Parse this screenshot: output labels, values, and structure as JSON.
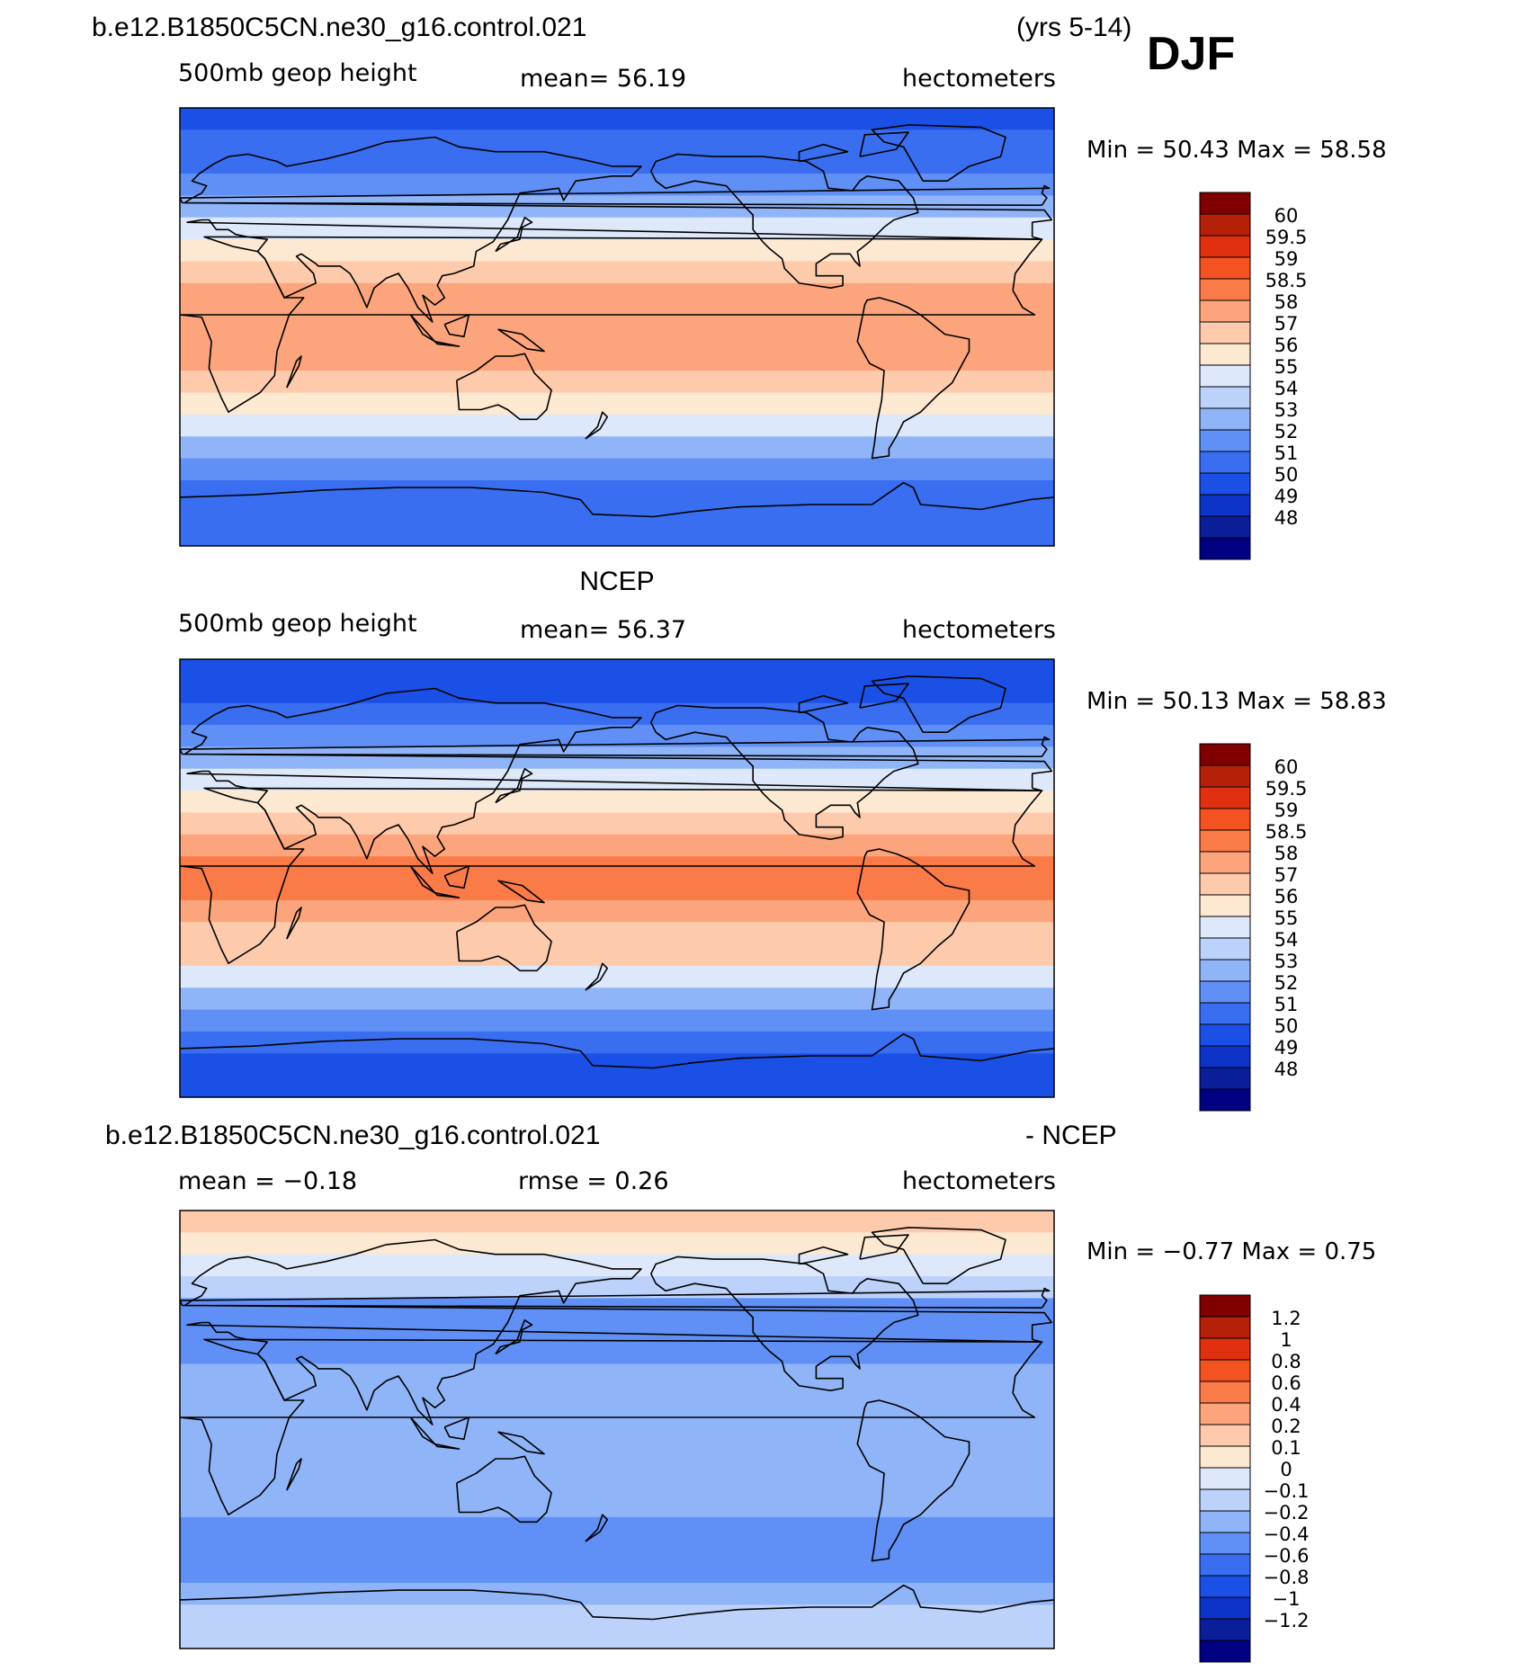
{
  "header": {
    "case_name": "b.e12.B1850C5CN.ne30_g16.control.021",
    "years": "(yrs 5-14)",
    "season": "DJF"
  },
  "panels": [
    {
      "id": "model",
      "title": "",
      "variable": "500mb geop height",
      "stat1": "mean=   56.19",
      "stat2": "",
      "units": "hectometers",
      "min_max": "Min =   50.43  Max =   58.58"
    },
    {
      "id": "obs",
      "title": "NCEP",
      "variable": "500mb geop height",
      "stat1": "mean=   56.37",
      "stat2": "",
      "units": "hectometers",
      "min_max": "Min =   50.13  Max =   58.83"
    },
    {
      "id": "diff",
      "title_left": "b.e12.B1850C5CN.ne30_g16.control.021",
      "title_right": "- NCEP",
      "variable": "",
      "stat1": "mean =   −0.18",
      "stat2": "rmse =    0.26",
      "units": "hectometers",
      "min_max": "Min =   −0.77  Max =    0.75"
    }
  ],
  "chart_data": [
    {
      "type": "heatmap",
      "title": "500mb geop height — b.e12.B1850C5CN.ne30_g16.control.021",
      "units": "hectometers",
      "mean": 56.19,
      "min": 50.43,
      "max": 58.58,
      "contour_levels": [
        48,
        49,
        50,
        51,
        52,
        53,
        54,
        55,
        56,
        57,
        58,
        58.5,
        59,
        59.5,
        60
      ],
      "colorbar_labels": [
        "60",
        "59.5",
        "59",
        "58.5",
        "58",
        "57",
        "56",
        "55",
        "54",
        "53",
        "52",
        "51",
        "50",
        "49",
        "48"
      ],
      "colors": [
        "#000080",
        "#0a1e9a",
        "#0d33c8",
        "#1a50e6",
        "#3a6ef0",
        "#6090f5",
        "#90b4f8",
        "#bcd2fa",
        "#dde9fb",
        "#fde8d2",
        "#fdcbac",
        "#fca47c",
        "#fa7a48",
        "#f45220",
        "#e03010",
        "#b52008",
        "#800000"
      ],
      "zonal_profile": {
        "latitude": [
          90,
          80,
          70,
          60,
          50,
          40,
          30,
          20,
          10,
          0,
          -10,
          -20,
          -30,
          -40,
          -50,
          -60,
          -70,
          -80,
          -90
        ],
        "value": [
          50.6,
          50.9,
          51.4,
          52.4,
          53.8,
          55.3,
          57.0,
          58.0,
          58.3,
          58.4,
          58.3,
          58.0,
          57.2,
          55.6,
          53.6,
          51.9,
          51.1,
          51.0,
          51.1
        ]
      }
    },
    {
      "type": "heatmap",
      "title": "500mb geop height — NCEP",
      "units": "hectometers",
      "mean": 56.37,
      "min": 50.13,
      "max": 58.83,
      "contour_levels": [
        48,
        49,
        50,
        51,
        52,
        53,
        54,
        55,
        56,
        57,
        58,
        58.5,
        59,
        59.5,
        60
      ],
      "colorbar_labels": [
        "60",
        "59.5",
        "59",
        "58.5",
        "58",
        "57",
        "56",
        "55",
        "54",
        "53",
        "52",
        "51",
        "50",
        "49",
        "48"
      ],
      "colors": [
        "#000080",
        "#0a1e9a",
        "#0d33c8",
        "#1a50e6",
        "#3a6ef0",
        "#6090f5",
        "#90b4f8",
        "#bcd2fa",
        "#dde9fb",
        "#fde8d2",
        "#fdcbac",
        "#fca47c",
        "#fa7a48",
        "#f45220",
        "#e03010",
        "#b52008",
        "#800000"
      ],
      "zonal_profile": {
        "latitude": [
          90,
          80,
          70,
          60,
          50,
          40,
          30,
          20,
          10,
          0,
          -10,
          -20,
          -30,
          -40,
          -50,
          -60,
          -70,
          -80,
          -90
        ],
        "value": [
          50.2,
          50.6,
          51.2,
          52.2,
          53.6,
          55.2,
          57.1,
          58.2,
          58.6,
          58.7,
          58.6,
          58.2,
          57.3,
          55.7,
          53.6,
          51.8,
          50.9,
          50.8,
          50.9
        ]
      }
    },
    {
      "type": "heatmap",
      "title": "b.e12.B1850C5CN.ne30_g16.control.021 - NCEP",
      "units": "hectometers",
      "mean": -0.18,
      "rmse": 0.26,
      "min": -0.77,
      "max": 0.75,
      "contour_levels": [
        -1.2,
        -1,
        -0.8,
        -0.6,
        -0.4,
        -0.2,
        -0.1,
        0,
        0.1,
        0.2,
        0.4,
        0.6,
        0.8,
        1,
        1.2
      ],
      "colorbar_labels": [
        "1.2",
        "1",
        "0.8",
        "0.6",
        "0.4",
        "0.2",
        "0.1",
        "0",
        "−0.1",
        "−0.2",
        "−0.4",
        "−0.6",
        "−0.8",
        "−1",
        "−1.2"
      ],
      "colors": [
        "#000080",
        "#0a1e9a",
        "#0d33c8",
        "#1a50e6",
        "#3a6ef0",
        "#6090f5",
        "#90b4f8",
        "#bcd2fa",
        "#dde9fb",
        "#fde8d2",
        "#fdcbac",
        "#fca47c",
        "#fa7a48",
        "#f45220",
        "#e03010",
        "#b52008",
        "#800000"
      ],
      "zonal_profile": {
        "latitude": [
          90,
          80,
          70,
          60,
          50,
          40,
          30,
          20,
          10,
          0,
          -10,
          -20,
          -30,
          -40,
          -50,
          -60,
          -70,
          -80,
          -90
        ],
        "value": [
          0.35,
          0.25,
          0.1,
          -0.05,
          -0.2,
          -0.25,
          -0.2,
          -0.2,
          -0.15,
          -0.15,
          -0.2,
          -0.2,
          -0.15,
          -0.35,
          -0.3,
          -0.2,
          -0.1,
          0.0,
          -0.1
        ]
      }
    }
  ]
}
